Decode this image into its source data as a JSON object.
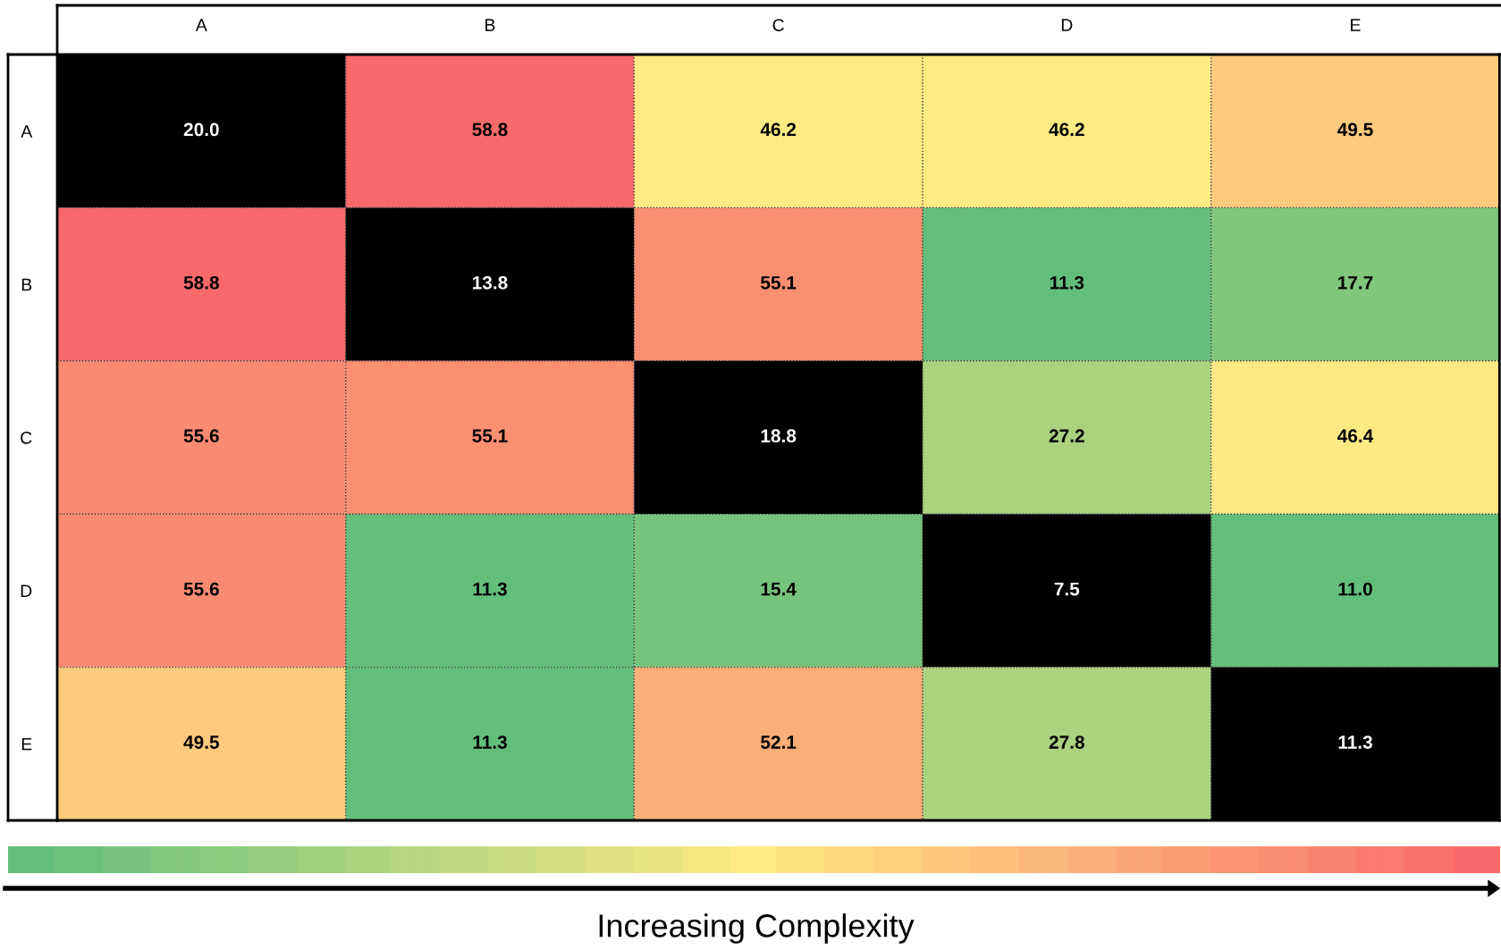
{
  "chart_data": {
    "type": "heatmap",
    "categories": [
      "A",
      "B",
      "C",
      "D",
      "E"
    ],
    "y_categories": [
      "A",
      "B",
      "C",
      "D",
      "E"
    ],
    "cells": [
      [
        20.0,
        58.8,
        46.2,
        46.2,
        49.5
      ],
      [
        58.8,
        13.8,
        55.1,
        11.3,
        17.7
      ],
      [
        55.6,
        55.1,
        18.8,
        27.2,
        46.4
      ],
      [
        55.6,
        11.3,
        15.4,
        7.5,
        11.0
      ],
      [
        49.5,
        11.3,
        52.1,
        27.8,
        11.3
      ]
    ],
    "colors": [
      [
        "#000000",
        null,
        null,
        null,
        null
      ],
      [
        null,
        "#000000",
        null,
        null,
        null
      ],
      [
        null,
        null,
        "#000000",
        null,
        null
      ],
      [
        null,
        null,
        null,
        "#000000",
        null
      ],
      [
        null,
        null,
        null,
        null,
        "#000000"
      ]
    ],
    "cell_labels": [
      [
        "20.0",
        "58.8",
        "46.2",
        "46.2",
        "49.5"
      ],
      [
        "58.8",
        "13.8",
        "55.1",
        "11.3",
        "17.7"
      ],
      [
        "55.6",
        "55.1",
        "18.8",
        "27.2",
        "46.4"
      ],
      [
        "55.6",
        "11.3",
        "15.4",
        "7.5",
        "11.0"
      ],
      [
        "49.5",
        "11.3",
        "52.1",
        "27.8",
        "11.3"
      ]
    ],
    "data_labels": true,
    "grid": true,
    "clabel": "Increasing Complexity"
  }
}
